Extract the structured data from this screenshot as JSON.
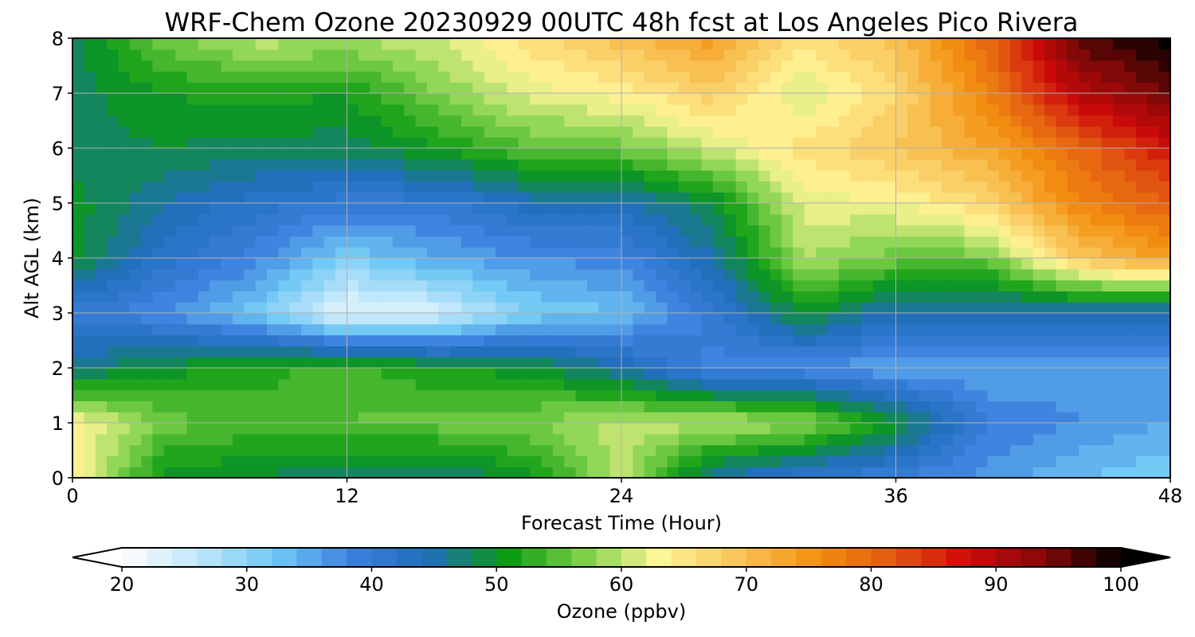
{
  "chart_data": {
    "type": "heatmap",
    "title": "WRF-Chem Ozone  20230929 00UTC 48h fcst at Los Angeles Pico Rivera",
    "xlabel": "Forecast Time (Hour)",
    "ylabel": "Alt AGL (km)",
    "xlim": [
      0,
      48
    ],
    "ylim": [
      0,
      8
    ],
    "x_ticks": [
      0,
      12,
      24,
      36,
      48
    ],
    "y_ticks": [
      0,
      1,
      2,
      3,
      4,
      5,
      6,
      7,
      8
    ],
    "grid": true,
    "x": [
      0,
      4,
      8,
      12,
      16,
      20,
      24,
      28,
      32,
      36,
      40,
      44,
      48
    ],
    "y": [
      0,
      1,
      2,
      3,
      4,
      5,
      6,
      7,
      8
    ],
    "z": [
      [
        64,
        50,
        49,
        47,
        46,
        50,
        60,
        45,
        41,
        39,
        36,
        33,
        31
      ],
      [
        64,
        56,
        54,
        55,
        56,
        57,
        60,
        60,
        58,
        50,
        39,
        37,
        35
      ],
      [
        46,
        50,
        52,
        54,
        51,
        50,
        45,
        38,
        37,
        35,
        35,
        36,
        36
      ],
      [
        40,
        37,
        32,
        22,
        24,
        31,
        33,
        40,
        50,
        44,
        44,
        44,
        44
      ],
      [
        50,
        42,
        38,
        31,
        35,
        37,
        38,
        45,
        59,
        56,
        56,
        69,
        74
      ],
      [
        50,
        45,
        42,
        40,
        40,
        44,
        44,
        49,
        62,
        63,
        67,
        77,
        81
      ],
      [
        48,
        49,
        48,
        48,
        51,
        55,
        56,
        61,
        66,
        69,
        73,
        80,
        87
      ],
      [
        48,
        51,
        52,
        51,
        57,
        62,
        64,
        68,
        61,
        67,
        77,
        90,
        95
      ],
      [
        48,
        56,
        60,
        59,
        61,
        66,
        70,
        74,
        66,
        70,
        80,
        96,
        100
      ]
    ],
    "colorbar": {
      "label": "Ozone  (ppbv)",
      "min": 20,
      "max": 100,
      "ticks": [
        20,
        30,
        40,
        50,
        60,
        70,
        80,
        90,
        100
      ],
      "extend": "both",
      "colors": [
        "#ffffff",
        "#bfe6fb",
        "#6fc8f5",
        "#3b7fdd",
        "#1f6eb8",
        "#0a9a12",
        "#7cd048",
        "#fff699",
        "#f9c55a",
        "#f39210",
        "#e35a10",
        "#cc0a0a",
        "#860808",
        "#000000"
      ]
    }
  }
}
